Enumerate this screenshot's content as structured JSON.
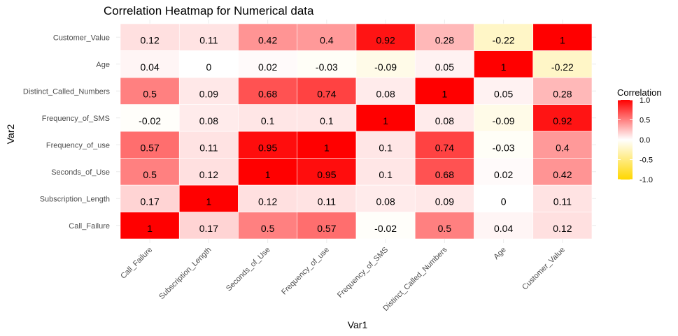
{
  "chart_data": {
    "type": "heatmap",
    "title": "Correlation Heatmap for Numerical data",
    "xlabel": "Var1",
    "ylabel": "Var2",
    "x_categories": [
      "Call_Failure",
      "Subscription_Length",
      "Seconds_of_Use",
      "Frequency_of_use",
      "Frequency_of_SMS",
      "Distinct_Called_Numbers",
      "Age",
      "Customer_Value"
    ],
    "y_categories": [
      "Call_Failure",
      "Subscription_Length",
      "Seconds_of_Use",
      "Frequency_of_use",
      "Frequency_of_SMS",
      "Distinct_Called_Numbers",
      "Age",
      "Customer_Value"
    ],
    "values": [
      [
        1,
        0.17,
        0.5,
        0.57,
        -0.02,
        0.5,
        0.04,
        0.12
      ],
      [
        0.17,
        1,
        0.12,
        0.11,
        0.08,
        0.09,
        0,
        0.11
      ],
      [
        0.5,
        0.12,
        1,
        0.95,
        0.1,
        0.68,
        0.02,
        0.42
      ],
      [
        0.57,
        0.11,
        0.95,
        1,
        0.1,
        0.74,
        -0.03,
        0.4
      ],
      [
        -0.02,
        0.08,
        0.1,
        0.1,
        1,
        0.08,
        -0.09,
        0.92
      ],
      [
        0.5,
        0.09,
        0.68,
        0.74,
        0.08,
        1,
        0.05,
        0.28
      ],
      [
        0.04,
        0,
        0.02,
        -0.03,
        -0.09,
        0.05,
        1,
        -0.22
      ],
      [
        0.12,
        0.11,
        0.42,
        0.4,
        0.92,
        0.28,
        -0.22,
        1
      ]
    ],
    "legend": {
      "title": "Correlation",
      "ticks": [
        1.0,
        0.5,
        0.0,
        -0.5,
        -1.0
      ],
      "tick_labels": [
        "1.0",
        "0.5",
        "0.0",
        "-0.5",
        "-1.0"
      ],
      "placement": "right",
      "range": [
        -1,
        1
      ]
    },
    "colors": {
      "high": "#ff0000",
      "mid": "#ffffff",
      "low": "#ffd700"
    },
    "grid": true
  }
}
